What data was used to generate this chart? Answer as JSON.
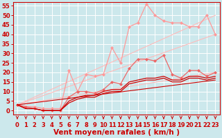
{
  "background_color": "#cce8ec",
  "grid_color": "#ffffff",
  "xlabel": "Vent moyen/en rafales ( km/h )",
  "xlim": [
    -0.5,
    23.5
  ],
  "ylim": [
    -2,
    57
  ],
  "yticks": [
    0,
    5,
    10,
    15,
    20,
    25,
    30,
    35,
    40,
    45,
    50,
    55
  ],
  "xticks": [
    0,
    1,
    2,
    3,
    4,
    5,
    6,
    7,
    8,
    9,
    10,
    11,
    12,
    13,
    14,
    15,
    16,
    17,
    18,
    19,
    20,
    21,
    22,
    23
  ],
  "lines": [
    {
      "x": [
        0,
        23
      ],
      "y": [
        3,
        50
      ],
      "color": "#ffbbbb",
      "linewidth": 0.8,
      "marker": null
    },
    {
      "x": [
        0,
        23
      ],
      "y": [
        3,
        40
      ],
      "color": "#ffbbbb",
      "linewidth": 0.8,
      "marker": null
    },
    {
      "x": [
        0,
        23
      ],
      "y": [
        3,
        20
      ],
      "color": "#ffbbbb",
      "linewidth": 0.8,
      "marker": null
    },
    {
      "x": [
        0,
        1,
        2,
        3,
        4,
        5,
        6,
        7,
        8,
        9,
        10,
        11,
        12,
        13,
        14,
        15,
        16,
        17,
        18,
        19,
        20,
        21,
        22,
        23
      ],
      "y": [
        3,
        2,
        2,
        1,
        1,
        1,
        21,
        10,
        19,
        18,
        19,
        33,
        25,
        44,
        46,
        56,
        50,
        47,
        46,
        46,
        44,
        44,
        50,
        40
      ],
      "color": "#ff9999",
      "linewidth": 0.9,
      "marker": "D",
      "markersize": 2.0
    },
    {
      "x": [
        0,
        1,
        2,
        3,
        4,
        5,
        6,
        7,
        8,
        9,
        10,
        11,
        12,
        13,
        14,
        15,
        16,
        17,
        18,
        19,
        20,
        21,
        22,
        23
      ],
      "y": [
        3,
        2,
        1,
        0,
        0,
        0,
        7,
        10,
        10,
        9,
        11,
        15,
        14,
        22,
        27,
        27,
        26,
        29,
        19,
        17,
        21,
        21,
        18,
        20
      ],
      "color": "#ee6666",
      "linewidth": 0.9,
      "marker": "D",
      "markersize": 2.0
    },
    {
      "x": [
        0,
        1,
        2,
        3,
        4,
        5,
        6,
        7,
        8,
        9,
        10,
        11,
        12,
        13,
        14,
        15,
        16,
        17,
        18,
        19,
        20,
        21,
        22,
        23
      ],
      "y": [
        3,
        1,
        1,
        0,
        0,
        0,
        4,
        6,
        7,
        7,
        9,
        10,
        10,
        14,
        15,
        16,
        16,
        17,
        15,
        15,
        17,
        17,
        16,
        17
      ],
      "color": "#cc0000",
      "linewidth": 0.9,
      "marker": null
    },
    {
      "x": [
        0,
        1,
        2,
        3,
        4,
        5,
        6,
        7,
        8,
        9,
        10,
        11,
        12,
        13,
        14,
        15,
        16,
        17,
        18,
        19,
        20,
        21,
        22,
        23
      ],
      "y": [
        3,
        1,
        1,
        0,
        0,
        0,
        5,
        7,
        8,
        8,
        10,
        11,
        11,
        15,
        16,
        17,
        17,
        18,
        16,
        16,
        18,
        18,
        17,
        18
      ],
      "color": "#cc0000",
      "linewidth": 0.9,
      "marker": null
    },
    {
      "x": [
        0,
        23
      ],
      "y": [
        3,
        16
      ],
      "color": "#cc0000",
      "linewidth": 0.8,
      "marker": null
    }
  ],
  "tick_color": "#cc0000",
  "axis_color": "#cc0000",
  "xlabel_color": "#cc0000",
  "xlabel_fontsize": 7.5,
  "tick_fontsize": 6.0
}
